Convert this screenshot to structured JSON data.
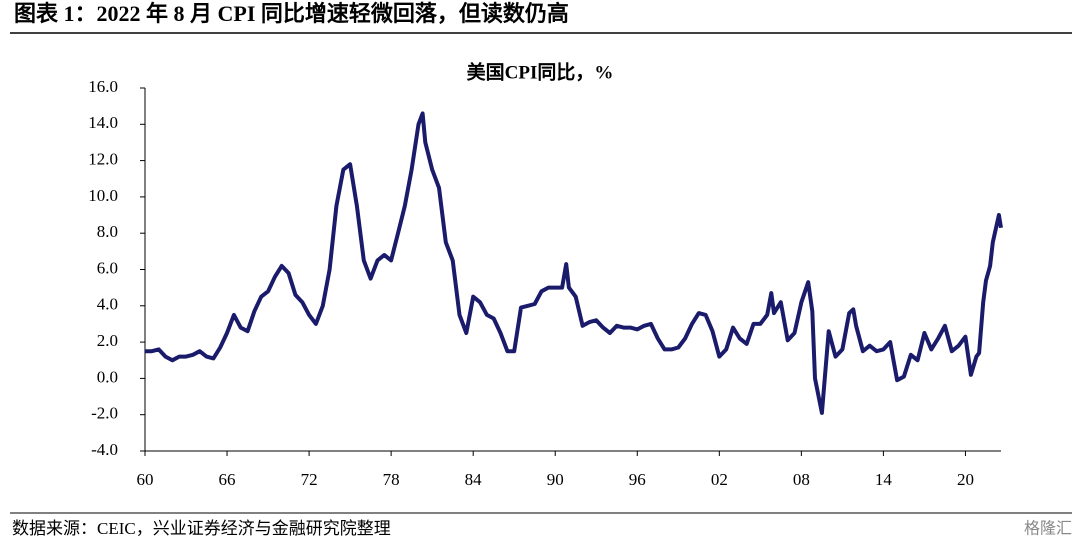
{
  "header": "图表 1：2022 年 8 月 CPI 同比增速轻微回落，但读数仍高",
  "source": "数据来源：CEIC，兴业证券经济与金融研究院整理",
  "watermark": "格隆汇",
  "chart_data": {
    "type": "line",
    "title": "美国CPI同比，%",
    "series": [
      {
        "name": "美国CPI同比",
        "color": "#1b1b6b",
        "x": [
          1960,
          1960.5,
          1961,
          1961.5,
          1962,
          1962.5,
          1963,
          1963.5,
          1964,
          1964.5,
          1965,
          1965.5,
          1966,
          1966.5,
          1967,
          1967.5,
          1968,
          1968.5,
          1969,
          1969.5,
          1970,
          1970.5,
          1971,
          1971.5,
          1972,
          1972.5,
          1973,
          1973.5,
          1974,
          1974.5,
          1975,
          1975.5,
          1976,
          1976.5,
          1977,
          1977.5,
          1978,
          1978.5,
          1979,
          1979.5,
          1980,
          1980.3,
          1980.5,
          1981,
          1981.5,
          1982,
          1982.5,
          1983,
          1983.5,
          1984,
          1984.5,
          1985,
          1985.5,
          1986,
          1986.5,
          1987,
          1987.5,
          1988,
          1988.5,
          1989,
          1989.5,
          1990,
          1990.5,
          1990.8,
          1991,
          1991.5,
          1992,
          1992.5,
          1993,
          1993.5,
          1994,
          1994.5,
          1995,
          1995.5,
          1996,
          1996.5,
          1997,
          1997.5,
          1998,
          1998.5,
          1999,
          1999.5,
          2000,
          2000.5,
          2001,
          2001.5,
          2002,
          2002.5,
          2003,
          2003.5,
          2004,
          2004.5,
          2005,
          2005.5,
          2005.8,
          2006,
          2006.5,
          2007,
          2007.5,
          2008,
          2008.5,
          2008.8,
          2009,
          2009.5,
          2010,
          2010.5,
          2011,
          2011.5,
          2011.8,
          2012,
          2012.5,
          2013,
          2013.5,
          2014,
          2014.5,
          2015,
          2015.5,
          2016,
          2016.5,
          2017,
          2017.5,
          2018,
          2018.5,
          2019,
          2019.5,
          2020,
          2020.4,
          2020.8,
          2021,
          2021.3,
          2021.5,
          2021.8,
          2022,
          2022.45,
          2022.6
        ],
        "values": [
          1.5,
          1.5,
          1.6,
          1.2,
          1.0,
          1.2,
          1.2,
          1.3,
          1.5,
          1.2,
          1.1,
          1.7,
          2.5,
          3.5,
          2.8,
          2.6,
          3.7,
          4.5,
          4.8,
          5.6,
          6.2,
          5.8,
          4.6,
          4.2,
          3.5,
          3.0,
          4.0,
          6.0,
          9.5,
          11.5,
          11.8,
          9.5,
          6.5,
          5.5,
          6.5,
          6.8,
          6.5,
          8.0,
          9.5,
          11.5,
          14.0,
          14.6,
          13.0,
          11.5,
          10.5,
          7.5,
          6.5,
          3.5,
          2.5,
          4.5,
          4.2,
          3.5,
          3.3,
          2.5,
          1.5,
          1.5,
          3.9,
          4.0,
          4.1,
          4.8,
          5.0,
          5.0,
          5.0,
          6.3,
          5.0,
          4.5,
          2.9,
          3.1,
          3.2,
          2.8,
          2.5,
          2.9,
          2.8,
          2.8,
          2.7,
          2.9,
          3.0,
          2.2,
          1.6,
          1.6,
          1.7,
          2.2,
          3.0,
          3.6,
          3.5,
          2.6,
          1.2,
          1.6,
          2.8,
          2.2,
          1.9,
          3.0,
          3.0,
          3.5,
          4.7,
          3.6,
          4.2,
          2.1,
          2.5,
          4.2,
          5.3,
          3.7,
          0.0,
          -1.9,
          2.6,
          1.2,
          1.6,
          3.6,
          3.8,
          2.9,
          1.5,
          1.8,
          1.5,
          1.6,
          2.0,
          -0.1,
          0.1,
          1.3,
          1.0,
          2.5,
          1.6,
          2.2,
          2.9,
          1.5,
          1.8,
          2.3,
          0.2,
          1.2,
          1.4,
          4.2,
          5.4,
          6.2,
          7.5,
          9.0,
          8.3
        ]
      }
    ],
    "xlim": [
      1960,
      2022.6
    ],
    "xticks": [
      {
        "value": 1960,
        "label": "60"
      },
      {
        "value": 1966,
        "label": "66"
      },
      {
        "value": 1972,
        "label": "72"
      },
      {
        "value": 1978,
        "label": "78"
      },
      {
        "value": 1984,
        "label": "84"
      },
      {
        "value": 1990,
        "label": "90"
      },
      {
        "value": 1996,
        "label": "96"
      },
      {
        "value": 2002,
        "label": "02"
      },
      {
        "value": 2008,
        "label": "08"
      },
      {
        "value": 2014,
        "label": "14"
      },
      {
        "value": 2020,
        "label": "20"
      }
    ],
    "ylim": [
      -4,
      16
    ],
    "yticks": [
      {
        "value": -4,
        "label": "-4.0"
      },
      {
        "value": -2,
        "label": "-2.0"
      },
      {
        "value": 0,
        "label": "0.0"
      },
      {
        "value": 2,
        "label": "2.0"
      },
      {
        "value": 4,
        "label": "4.0"
      },
      {
        "value": 6,
        "label": "6.0"
      },
      {
        "value": 8,
        "label": "8.0"
      },
      {
        "value": 10,
        "label": "10.0"
      },
      {
        "value": 12,
        "label": "12.0"
      },
      {
        "value": 14,
        "label": "14.0"
      },
      {
        "value": 16,
        "label": "16.0"
      }
    ],
    "grid": false
  }
}
